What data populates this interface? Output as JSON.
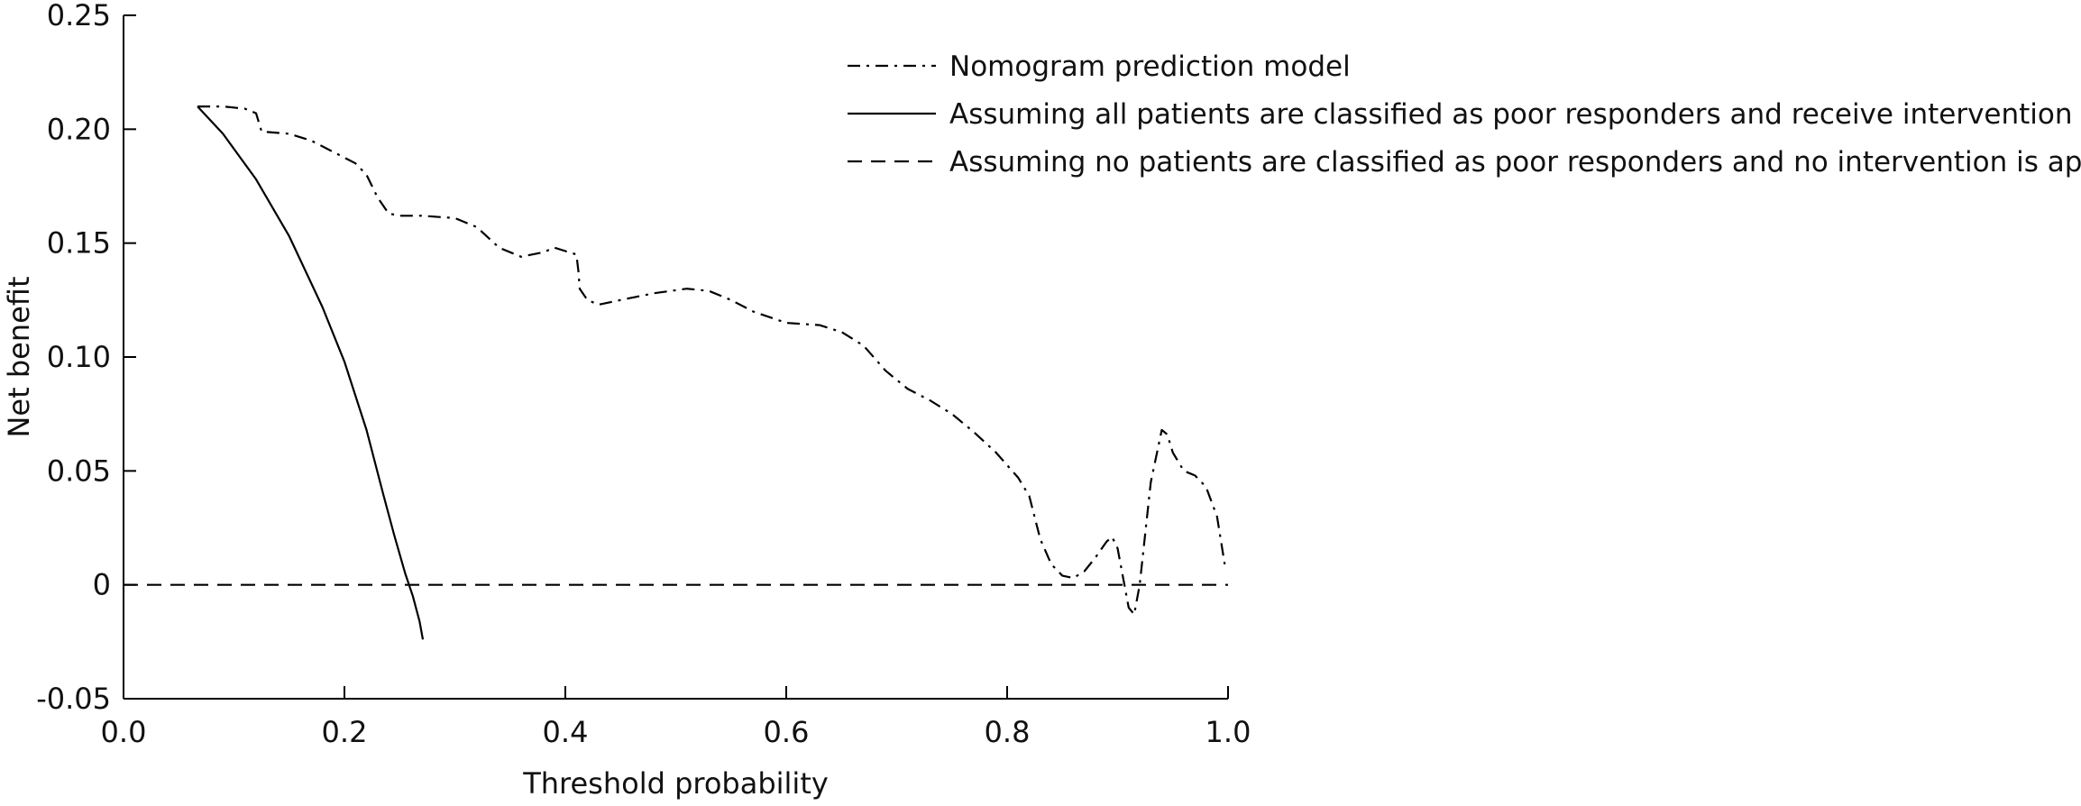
{
  "chart_data": {
    "type": "line",
    "title": "",
    "xlabel": "Threshold probability",
    "ylabel": "Net  benefit",
    "xlim": [
      0.0,
      1.0
    ],
    "ylim": [
      -0.05,
      0.25
    ],
    "x_ticks": [
      "0.0",
      "0.2",
      "0.4",
      "0.6",
      "0.8",
      "1.0"
    ],
    "x_tick_values": [
      0.0,
      0.2,
      0.4,
      0.6,
      0.8,
      1.0
    ],
    "y_ticks": [
      "0.25",
      "0.20",
      "0.15",
      "0.10",
      "0.05",
      "0",
      "-0.05"
    ],
    "y_tick_values": [
      0.25,
      0.2,
      0.15,
      0.1,
      0.05,
      0.0,
      -0.05
    ],
    "grid": false,
    "legend_position": "top-right",
    "series": [
      {
        "name": "Nomogram prediction model",
        "style": "dashdot",
        "color": "#000000",
        "x": [
          0.067,
          0.09,
          0.11,
          0.12,
          0.125,
          0.15,
          0.17,
          0.19,
          0.21,
          0.22,
          0.23,
          0.24,
          0.25,
          0.27,
          0.3,
          0.32,
          0.34,
          0.36,
          0.38,
          0.39,
          0.41,
          0.412,
          0.413,
          0.42,
          0.43,
          0.45,
          0.48,
          0.51,
          0.53,
          0.55,
          0.57,
          0.6,
          0.63,
          0.65,
          0.67,
          0.69,
          0.71,
          0.73,
          0.75,
          0.77,
          0.79,
          0.81,
          0.82,
          0.83,
          0.84,
          0.85,
          0.86,
          0.87,
          0.88,
          0.89,
          0.895,
          0.9,
          0.91,
          0.915,
          0.92,
          0.93,
          0.94,
          0.945,
          0.95,
          0.96,
          0.97,
          0.98,
          0.99,
          0.997
        ],
        "y": [
          0.21,
          0.21,
          0.209,
          0.207,
          0.199,
          0.198,
          0.195,
          0.19,
          0.185,
          0.18,
          0.17,
          0.163,
          0.162,
          0.162,
          0.161,
          0.157,
          0.148,
          0.144,
          0.146,
          0.148,
          0.145,
          0.137,
          0.13,
          0.125,
          0.123,
          0.125,
          0.128,
          0.13,
          0.129,
          0.125,
          0.12,
          0.115,
          0.114,
          0.111,
          0.105,
          0.094,
          0.086,
          0.081,
          0.075,
          0.067,
          0.058,
          0.047,
          0.039,
          0.02,
          0.009,
          0.004,
          0.003,
          0.006,
          0.012,
          0.019,
          0.021,
          0.016,
          -0.01,
          -0.013,
          0.0,
          0.045,
          0.068,
          0.066,
          0.058,
          0.05,
          0.048,
          0.043,
          0.03,
          0.009
        ]
      },
      {
        "name": "Assuming all patients are classified as poor responders and receive intervention",
        "style": "solid",
        "color": "#000000",
        "x": [
          0.067,
          0.09,
          0.12,
          0.15,
          0.18,
          0.2,
          0.22,
          0.235,
          0.245,
          0.255,
          0.262,
          0.268,
          0.271
        ],
        "y": [
          0.21,
          0.198,
          0.178,
          0.153,
          0.122,
          0.098,
          0.068,
          0.04,
          0.022,
          0.005,
          -0.005,
          -0.016,
          -0.024
        ]
      },
      {
        "name": "Assuming no patients are classified as poor responders and no intervention is applied",
        "style": "dashed",
        "color": "#000000",
        "x": [
          0.0,
          1.0
        ],
        "y": [
          0.0,
          0.0
        ]
      }
    ]
  }
}
